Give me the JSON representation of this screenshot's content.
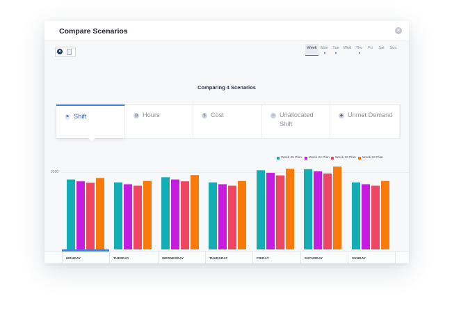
{
  "modal": {
    "title": "Compare Scenarios",
    "close_icon": "close-icon"
  },
  "view_toggle": {
    "icons": [
      "chart-icon",
      "document-icon"
    ]
  },
  "day_tabs": [
    {
      "label": "Week",
      "active": true,
      "dot": false
    },
    {
      "label": "Mon",
      "active": false,
      "dot": true
    },
    {
      "label": "Tue",
      "active": false,
      "dot": true
    },
    {
      "label": "Wed",
      "active": false,
      "dot": false
    },
    {
      "label": "Thu",
      "active": false,
      "dot": true
    },
    {
      "label": "Fri",
      "active": false,
      "dot": false
    },
    {
      "label": "Sat",
      "active": false,
      "dot": false
    },
    {
      "label": "Sun",
      "active": false,
      "dot": false
    }
  ],
  "compare_title": "Comparing 4 Scenarios",
  "metric_tabs": [
    {
      "label": "Shift",
      "icon": "shift-icon",
      "active": true
    },
    {
      "label": "Hours",
      "icon": "clock-icon",
      "active": false
    },
    {
      "label": "Cost",
      "icon": "dollar-icon",
      "active": false
    },
    {
      "label": "Unallocated Shift",
      "icon": "unallocated-icon",
      "active": false
    },
    {
      "label": "Unmet Demand",
      "icon": "demand-icon",
      "active": false
    }
  ],
  "colors": {
    "accent": "#2e63b8",
    "active_underline": "#4a7fd8"
  },
  "chart_data": {
    "type": "bar",
    "ytick_label": "2100",
    "categories": [
      "MONDAY",
      "TUESDAY",
      "WEDNESDAY",
      "THURSDAY",
      "FRIDAY",
      "SATURDAY",
      "SUNDAY"
    ],
    "series": [
      {
        "name": "Week 25 Plan",
        "color": "#14adb5",
        "values": [
          1900,
          1820,
          1960,
          1820,
          2150,
          2180,
          1820
        ]
      },
      {
        "name": "Week 24 Plan",
        "color": "#c51de0",
        "values": [
          1850,
          1770,
          1900,
          1770,
          2080,
          2120,
          1770
        ]
      },
      {
        "name": "Week 23 Plan",
        "color": "#ee4662",
        "values": [
          1810,
          1730,
          1850,
          1730,
          2010,
          2060,
          1730
        ]
      },
      {
        "name": "Week 22 Plan",
        "color": "#f97a0b",
        "values": [
          1940,
          1860,
          2020,
          1860,
          2190,
          2250,
          1860
        ]
      }
    ],
    "ylim": [
      0,
      2400
    ],
    "selected_category": "MONDAY",
    "grid": true,
    "legend_position": "top-right"
  }
}
